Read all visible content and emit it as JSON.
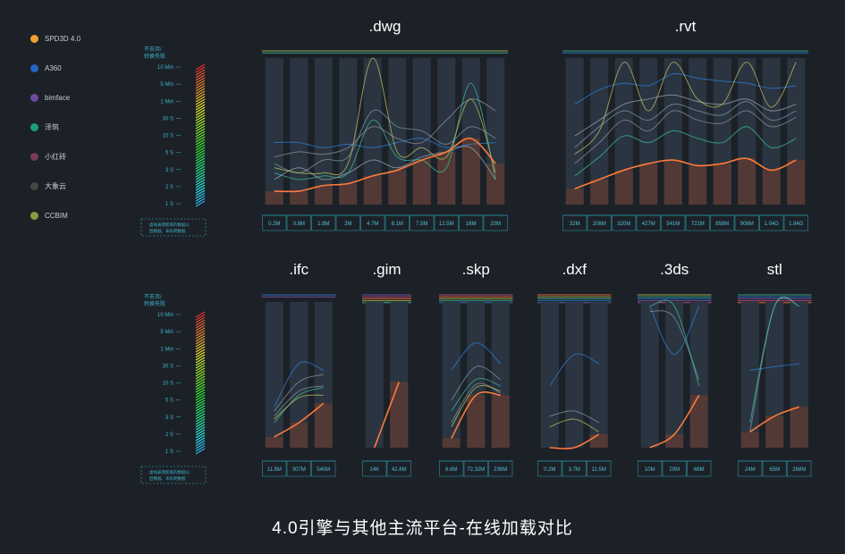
{
  "legend": [
    {
      "name": "SPD3D 4.0",
      "color": "#f0a030"
    },
    {
      "name": "A360",
      "color": "#2166c4"
    },
    {
      "name": "bimface",
      "color": "#6a4a9a"
    },
    {
      "name": "泽筑",
      "color": "#1c9e7a"
    },
    {
      "name": "小红砖",
      "color": "#7a3a5a"
    },
    {
      "name": "大象云",
      "color": "#454545"
    },
    {
      "name": "CCBIM",
      "color": "#8a9a40"
    }
  ],
  "scale_legend": {
    "fail_label_line1": "不支持/",
    "fail_label_line2": "转换失败",
    "ticks": [
      "10 Min",
      "5 Min",
      "1 Min",
      "30 S",
      "10 S",
      "5 S",
      "3 S",
      "2 S",
      "1 S"
    ],
    "note_line1": "虚线表明新版的数据以",
    "note_line2": "后数据。未标明数据"
  },
  "caption": "4.0引擎与其他主流平台-在线加载对比",
  "chart_data": [
    {
      "type": "line",
      "title": ".dwg",
      "x": [
        "0.2M",
        "0.8M",
        "1.8M",
        "2M",
        "4.7M",
        "6.1M",
        "7.5M",
        "12.5M",
        "16M",
        "20M"
      ],
      "y_scale_ticks": [
        "1 S",
        "2 S",
        "3 S",
        "5 S",
        "10 S",
        "30 S",
        "1 Min",
        "5 Min",
        "10 Min"
      ],
      "series": [
        {
          "name": "SPD3D 4.0",
          "values": [
            1.8,
            1.8,
            2.3,
            2.5,
            3.5,
            4.5,
            7,
            10,
            18,
            6
          ]
        },
        {
          "name": "A360",
          "values": [
            15,
            15,
            12,
            14,
            12,
            15,
            18,
            12,
            14,
            15
          ]
        },
        {
          "name": "bimface",
          "values": [
            6,
            4,
            7,
            8,
            60,
            30,
            25,
            14,
            30,
            18
          ]
        },
        {
          "name": "泽筑",
          "values": [
            4,
            3,
            3.5,
            4,
            40,
            8,
            7,
            5,
            200,
            3
          ]
        },
        {
          "name": "小红砖",
          "values": [
            3,
            5,
            3,
            4,
            7,
            5,
            8,
            10,
            12,
            3
          ]
        },
        {
          "name": "大象云",
          "values": [
            8,
            10,
            9,
            12,
            30,
            18,
            15,
            40,
            100,
            60
          ]
        },
        {
          "name": "CCBIM",
          "values": [
            5,
            4,
            4,
            6,
            600,
            10,
            12,
            8,
            100,
            4
          ]
        }
      ]
    },
    {
      "type": "line",
      "title": ".rvt",
      "x": [
        "32M",
        "208M",
        "320M",
        "427M",
        "541M",
        "721M",
        "858M",
        "908M",
        "1.04G",
        "1.94G"
      ],
      "series": [
        {
          "name": "SPD3D 4.0",
          "values": [
            2,
            3,
            4.5,
            6,
            7,
            5.5,
            6,
            7.5,
            4.5,
            7
          ]
        },
        {
          "name": "A360",
          "values": [
            80,
            150,
            200,
            180,
            300,
            250,
            220,
            200,
            160,
            180
          ]
        },
        {
          "name": "bimface",
          "values": [
            12,
            30,
            60,
            40,
            80,
            60,
            50,
            90,
            40,
            60
          ]
        },
        {
          "name": "泽筑",
          "values": [
            3.5,
            8,
            20,
            15,
            25,
            18,
            15,
            30,
            12,
            18
          ]
        },
        {
          "name": "小红砖",
          "values": [
            20,
            40,
            80,
            100,
            120,
            90,
            80,
            100,
            60,
            80
          ]
        },
        {
          "name": "大象云",
          "values": [
            6,
            15,
            40,
            25,
            60,
            40,
            35,
            60,
            30,
            45
          ]
        },
        {
          "name": "CCBIM",
          "values": [
            9,
            25,
            500,
            60,
            500,
            100,
            80,
            500,
            70,
            500
          ]
        }
      ]
    },
    {
      "type": "line",
      "title": ".ifc",
      "x": [
        "11.8M",
        "307M",
        "540M"
      ],
      "series": [
        {
          "name": "SPD3D 4.0",
          "values": [
            1.6,
            3,
            7
          ]
        },
        {
          "name": "A360",
          "values": [
            6,
            40,
            30
          ]
        },
        {
          "name": "bimface",
          "values": [
            4,
            12,
            15
          ]
        },
        {
          "name": "泽筑",
          "values": [
            3,
            10,
            14
          ]
        },
        {
          "name": "大象云",
          "values": [
            5,
            18,
            25
          ]
        },
        {
          "name": "CCBIM",
          "values": [
            3.5,
            9,
            10
          ]
        }
      ]
    },
    {
      "type": "line",
      "title": ".gim",
      "x": [
        "14K",
        "42.8M"
      ],
      "series": [
        {
          "name": "SPD3D 4.0",
          "values": [
            1,
            18
          ]
        }
      ]
    },
    {
      "type": "line",
      "title": ".skp",
      "x": [
        "6.6M",
        "72.32M",
        "236M"
      ],
      "series": [
        {
          "name": "SPD3D 4.0",
          "values": [
            1.5,
            10,
            10
          ]
        },
        {
          "name": "A360",
          "values": [
            30,
            100,
            40
          ]
        },
        {
          "name": "bimface",
          "values": [
            8,
            35,
            20
          ]
        },
        {
          "name": "泽筑",
          "values": [
            5,
            20,
            15
          ]
        },
        {
          "name": "大象云",
          "values": [
            3,
            16,
            11
          ]
        },
        {
          "name": "CCBIM",
          "values": [
            2.5,
            14,
            12
          ]
        }
      ]
    },
    {
      "type": "line",
      "title": ".dxf",
      "x": [
        "0.2M",
        "3.7M",
        "11.5M"
      ],
      "series": [
        {
          "name": "SPD3D 4.0",
          "values": [
            1,
            1,
            1.8
          ]
        },
        {
          "name": "A360",
          "values": [
            15,
            60,
            40
          ]
        },
        {
          "name": "bimface",
          "values": [
            4,
            5,
            3
          ]
        },
        {
          "name": "CCBIM",
          "values": [
            2.5,
            3.5,
            2
          ]
        }
      ]
    },
    {
      "type": "line",
      "title": ".3ds",
      "x": [
        "10M",
        "20M",
        "68M"
      ],
      "series": [
        {
          "name": "SPD3D 4.0",
          "values": [
            1,
            1.8,
            10
          ]
        },
        {
          "name": "A360",
          "values": [
            500,
            60,
            500
          ]
        },
        {
          "name": "bimface",
          "values": [
            400,
            300,
            20
          ]
        },
        {
          "name": "泽筑",
          "values": [
            500,
            500,
            15
          ]
        }
      ]
    },
    {
      "type": "line",
      "title": "stl",
      "x": [
        "24M",
        "65M",
        "268M"
      ],
      "series": [
        {
          "name": "SPD3D 4.0",
          "values": [
            2,
            4,
            6
          ]
        },
        {
          "name": "A360",
          "values": [
            30,
            35,
            40
          ]
        },
        {
          "name": "bimface",
          "values": [
            2,
            500,
            500
          ]
        },
        {
          "name": "泽筑",
          "values": [
            3,
            500,
            500
          ]
        }
      ]
    }
  ]
}
